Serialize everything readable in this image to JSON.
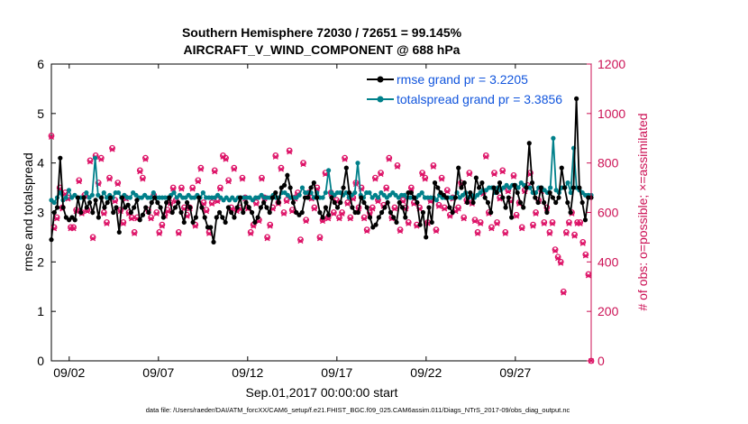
{
  "chart_data": {
    "type": "line",
    "title": "Southern Hemisphere 72030 / 72651 = 99.145%",
    "subtitle": "AIRCRAFT_V_WIND_COMPONENT @ 688 hPa",
    "xlabel": "Sep.01,2017 00:00:00 start",
    "ylabel_left": "rmse and totalspread",
    "ylabel_right": "# of obs: o=possible; ×=assimilated",
    "footer": "data file: /Users/raeder/DAI/ATM_forcXX/CAM6_setup/f.e21.FHIST_BGC.f09_025.CAM6assim.011/Diags_NTrS_2017-09/obs_diag_output.nc",
    "x_ticks": [
      {
        "day": 2,
        "label": "09/02"
      },
      {
        "day": 7,
        "label": "09/07"
      },
      {
        "day": 12,
        "label": "09/12"
      },
      {
        "day": 17,
        "label": "09/17"
      },
      {
        "day": 22,
        "label": "09/22"
      },
      {
        "day": 27,
        "label": "09/27"
      }
    ],
    "x_range": [
      1.0,
      31.25
    ],
    "y_left_range": [
      0,
      6
    ],
    "y_left_ticks": [
      "0",
      "1",
      "2",
      "3",
      "4",
      "5",
      "6"
    ],
    "y_right_range": [
      0,
      1200
    ],
    "y_right_ticks": [
      "0",
      "200",
      "400",
      "600",
      "800",
      "1000",
      "1200"
    ],
    "legend_position": "top-right",
    "series": [
      {
        "name": "rmse grand pr = 3.2205",
        "color": "#000000",
        "axis": "left",
        "values": [
          2.45,
          3.0,
          3.1,
          4.1,
          3.1,
          2.9,
          2.85,
          2.9,
          2.85,
          3.3,
          3.0,
          3.3,
          3.1,
          3.2,
          3.0,
          3.25,
          2.9,
          3.3,
          3.1,
          3.2,
          3.3,
          3.0,
          3.1,
          2.6,
          3.3,
          3.1,
          3.15,
          3.0,
          3.1,
          3.25,
          2.85,
          2.95,
          3.1,
          3.0,
          3.2,
          3.3,
          3.2,
          3.1,
          2.9,
          3.2,
          3.3,
          3.0,
          3.1,
          3.2,
          3.0,
          2.8,
          3.2,
          3.1,
          2.8,
          2.9,
          3.3,
          3.1,
          2.9,
          2.7,
          2.7,
          2.4,
          2.9,
          3.0,
          2.9,
          2.8,
          3.1,
          3.0,
          2.9,
          3.1,
          3.3,
          3.0,
          3.2,
          3.1,
          3.0,
          2.8,
          2.9,
          3.1,
          3.2,
          3.1,
          3.0,
          3.3,
          3.4,
          3.2,
          3.5,
          3.55,
          3.75,
          3.5,
          3.2,
          3.0,
          2.95,
          3.0,
          3.3,
          3.3,
          3.5,
          3.6,
          3.3,
          3.0,
          2.9,
          3.1,
          2.95,
          3.3,
          3.2,
          3.1,
          3.2,
          3.5,
          3.9,
          3.4,
          3.1,
          3.0,
          3.0,
          3.3,
          3.2,
          3.1,
          2.9,
          2.7,
          2.75,
          2.9,
          3.0,
          3.1,
          3.2,
          3.0,
          2.9,
          2.8,
          3.2,
          3.1,
          2.9,
          3.4,
          3.4,
          3.3,
          3.2,
          2.75,
          3.0,
          2.5,
          3.1,
          2.8,
          3.6,
          3.5,
          3.4,
          3.35,
          3.3,
          3.1,
          3.0,
          3.3,
          3.9,
          3.5,
          3.6,
          3.2,
          3.4,
          3.2,
          3.7,
          3.5,
          3.6,
          3.3,
          3.2,
          3.0,
          3.5,
          3.4,
          3.6,
          3.3,
          3.1,
          3.3,
          2.9,
          3.55,
          3.4,
          3.2,
          3.1,
          3.5,
          4.4,
          3.6,
          3.3,
          3.2,
          3.5,
          3.2,
          3.0,
          3.4,
          3.3,
          3.2,
          3.3,
          3.9,
          3.5,
          3.2,
          3.0,
          3.5,
          5.3,
          3.5,
          3.2,
          2.85,
          3.3,
          3.3
        ]
      },
      {
        "name": "totalspread grand pr = 3.3856",
        "color": "#00808a",
        "axis": "left",
        "values": [
          3.25,
          3.2,
          3.3,
          3.4,
          3.25,
          3.3,
          3.45,
          3.3,
          3.35,
          3.3,
          3.3,
          3.3,
          3.4,
          3.3,
          3.35,
          4.1,
          3.35,
          3.3,
          3.4,
          3.3,
          3.35,
          3.3,
          3.4,
          3.4,
          3.3,
          3.35,
          3.3,
          3.3,
          3.4,
          3.35,
          3.3,
          3.3,
          3.35,
          3.3,
          3.3,
          3.4,
          3.3,
          3.3,
          3.3,
          3.3,
          3.3,
          3.35,
          3.4,
          3.3,
          3.35,
          3.3,
          3.3,
          3.35,
          3.3,
          3.3,
          3.35,
          3.3,
          3.4,
          3.3,
          3.3,
          3.3,
          3.3,
          3.35,
          3.3,
          3.25,
          3.3,
          3.25,
          3.3,
          3.25,
          3.3,
          3.3,
          3.3,
          3.3,
          3.3,
          3.25,
          3.3,
          3.3,
          3.35,
          3.3,
          3.3,
          3.3,
          3.35,
          3.3,
          3.3,
          3.4,
          3.4,
          3.35,
          3.3,
          3.3,
          3.3,
          3.35,
          3.5,
          3.4,
          3.4,
          3.4,
          3.3,
          3.4,
          3.3,
          3.3,
          3.4,
          3.85,
          3.4,
          3.35,
          3.4,
          3.4,
          3.35,
          3.4,
          3.3,
          3.35,
          3.4,
          4.0,
          3.35,
          3.3,
          3.4,
          3.4,
          3.3,
          3.35,
          3.3,
          3.4,
          3.35,
          3.3,
          3.35,
          3.4,
          3.35,
          3.3,
          3.35,
          3.35,
          3.3,
          3.3,
          3.3,
          3.3,
          3.35,
          3.4,
          3.3,
          3.3,
          3.3,
          3.3,
          3.25,
          3.35,
          3.3,
          3.3,
          3.3,
          3.3,
          3.3,
          3.4,
          3.3,
          3.35,
          3.4,
          3.3,
          3.35,
          3.3,
          3.35,
          3.4,
          3.45,
          3.45,
          3.5,
          3.5,
          3.4,
          3.5,
          3.45,
          3.5,
          3.55,
          3.5,
          3.55,
          3.55,
          3.5,
          3.6,
          3.55,
          3.5,
          3.5,
          3.4,
          3.4,
          3.5,
          3.5,
          3.45,
          3.4,
          3.5,
          4.5,
          3.45,
          3.4,
          3.5,
          3.5,
          3.6,
          3.4,
          4.3,
          3.5,
          3.45,
          3.4,
          3.35,
          3.35,
          3.35
        ]
      }
    ],
    "obs_possible": [
      910,
      540,
      580,
      700,
      620,
      680,
      660,
      540,
      540,
      610,
      730,
      600,
      670,
      610,
      810,
      500,
      830,
      720,
      820,
      600,
      560,
      740,
      860,
      650,
      720,
      610,
      560,
      660,
      600,
      580,
      520,
      580,
      770,
      740,
      820,
      610,
      580,
      670,
      600,
      520,
      550,
      590,
      610,
      640,
      700,
      650,
      520,
      700,
      620,
      590,
      620,
      700,
      550,
      730,
      780,
      640,
      610,
      520,
      640,
      770,
      650,
      700,
      830,
      820,
      730,
      620,
      780,
      610,
      620,
      740,
      660,
      620,
      520,
      550,
      640,
      570,
      740,
      660,
      500,
      550,
      620,
      830,
      640,
      780,
      600,
      650,
      850,
      610,
      660,
      680,
      490,
      800,
      570,
      680,
      660,
      620,
      700,
      500,
      570,
      760,
      580,
      680,
      600,
      650,
      580,
      600,
      820,
      640,
      580,
      660,
      720,
      620,
      700,
      580,
      530,
      600,
      620,
      740,
      650,
      760,
      630,
      700,
      820,
      580,
      620,
      790,
      530,
      650,
      620,
      560,
      700,
      640,
      550,
      620,
      760,
      740,
      560,
      650,
      790,
      530,
      630,
      740,
      620,
      690,
      590,
      660,
      610,
      620,
      720,
      580,
      650,
      760,
      640,
      570,
      520,
      560,
      680,
      830,
      600,
      540,
      760,
      560,
      660,
      770,
      520,
      690,
      650,
      750,
      590,
      640,
      540,
      690,
      710,
      760,
      550,
      600,
      650,
      690,
      560,
      620,
      520,
      560,
      450,
      420,
      400,
      280,
      520,
      560,
      600,
      510,
      560,
      560,
      480,
      430,
      350,
      0
    ],
    "obs_assimilated": [
      905,
      535,
      575,
      695,
      615,
      675,
      655,
      535,
      535,
      605,
      725,
      595,
      665,
      605,
      805,
      495,
      825,
      715,
      815,
      595,
      555,
      735,
      855,
      645,
      715,
      605,
      555,
      655,
      595,
      575,
      515,
      575,
      765,
      735,
      815,
      605,
      575,
      665,
      595,
      515,
      545,
      585,
      605,
      635,
      695,
      645,
      515,
      695,
      615,
      585,
      615,
      695,
      545,
      725,
      775,
      635,
      605,
      515,
      635,
      765,
      645,
      695,
      825,
      815,
      725,
      615,
      775,
      605,
      615,
      735,
      655,
      615,
      515,
      545,
      635,
      565,
      735,
      655,
      495,
      545,
      615,
      825,
      635,
      775,
      595,
      645,
      845,
      605,
      655,
      675,
      485,
      795,
      565,
      675,
      655,
      615,
      695,
      495,
      565,
      755,
      575,
      675,
      595,
      645,
      575,
      595,
      815,
      635,
      575,
      655,
      715,
      615,
      695,
      575,
      525,
      595,
      615,
      735,
      645,
      755,
      625,
      695,
      815,
      575,
      615,
      785,
      525,
      645,
      615,
      555,
      695,
      635,
      545,
      615,
      755,
      735,
      555,
      645,
      785,
      525,
      625,
      735,
      615,
      685,
      585,
      655,
      605,
      615,
      715,
      575,
      645,
      755,
      635,
      565,
      515,
      555,
      675,
      825,
      595,
      535,
      755,
      555,
      655,
      765,
      515,
      685,
      645,
      745,
      585,
      635,
      535,
      685,
      705,
      755,
      545,
      595,
      645,
      685,
      555,
      615,
      515,
      555,
      445,
      415,
      395,
      275,
      515,
      555,
      595,
      505,
      555,
      555,
      475,
      425,
      345,
      0
    ]
  }
}
